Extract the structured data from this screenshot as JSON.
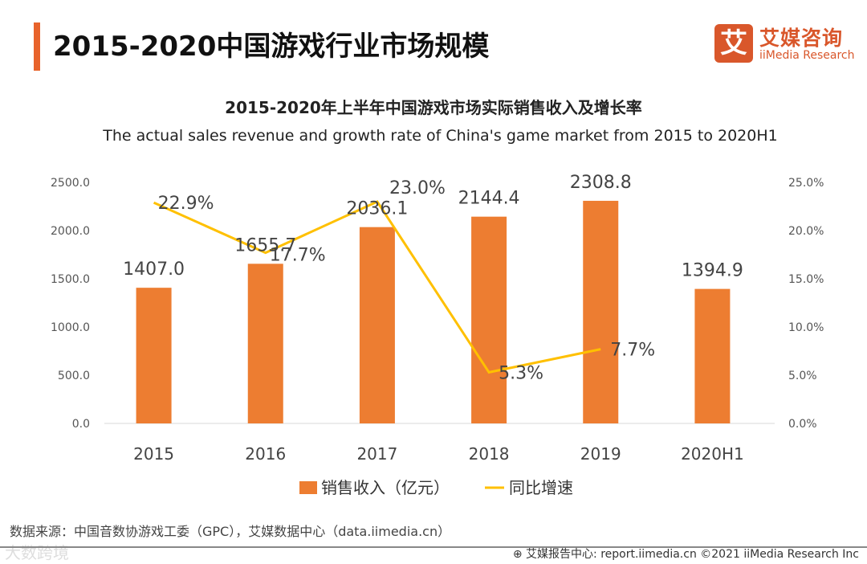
{
  "header": {
    "title": "2015-2020中国游戏行业市场规模"
  },
  "logo": {
    "mark": "艾",
    "name_cn": "艾媒咨询",
    "name_en": "iiMedia Research"
  },
  "chart_data": {
    "type": "bar",
    "title": "2015-2020年上半年中国游戏市场实际销售收入及增长率",
    "subtitle": "The actual sales revenue and growth rate of China's game market from 2015 to 2020H1",
    "categories": [
      "2015",
      "2016",
      "2017",
      "2018",
      "2019",
      "2020H1"
    ],
    "series": [
      {
        "name": "销售收入（亿元）",
        "type": "bar",
        "axis": "left",
        "color": "#ed7d31",
        "values": [
          1407.0,
          1655.7,
          2036.1,
          2144.4,
          2308.8,
          1394.9
        ],
        "labels": [
          "1407.0",
          "1655.7",
          "2036.1",
          "2144.4",
          "2308.8",
          "1394.9"
        ]
      },
      {
        "name": "同比增速",
        "type": "line",
        "axis": "right",
        "color": "#ffc000",
        "values": [
          22.9,
          17.7,
          23.0,
          5.3,
          7.7,
          null
        ],
        "labels": [
          "22.9%",
          "17.7%",
          "23.0%",
          "5.3%",
          "7.7%",
          ""
        ]
      }
    ],
    "ylim": [
      0,
      2500
    ],
    "yticks": [
      "0.0",
      "500.0",
      "1000.0",
      "1500.0",
      "2000.0",
      "2500.0"
    ],
    "y2lim": [
      0,
      25
    ],
    "y2ticks": [
      "0.0%",
      "5.0%",
      "10.0%",
      "15.0%",
      "20.0%",
      "25.0%"
    ],
    "legend": "bottom"
  },
  "footer": {
    "source": "数据来源：中国音数协游戏工委（GPC），艾媒数据中心（data.iimedia.cn）",
    "credit": "⊕ 艾媒报告中心: report.iimedia.cn  ©2021  iiMedia Research  Inc",
    "watermark": "大数跨境"
  }
}
